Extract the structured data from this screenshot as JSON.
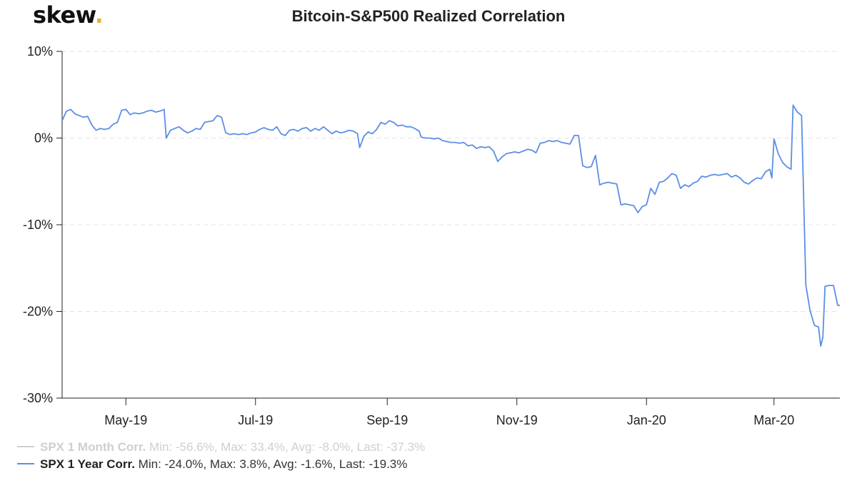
{
  "logo": {
    "text": "skew",
    "dot": "."
  },
  "colors": {
    "series_1y": "#5b8ee6",
    "series_1m_inactive": "#cfcfcf",
    "grid": "#e3e3e3",
    "axis": "#222222",
    "logo_dot": "#e8b33a"
  },
  "legend": [
    {
      "name": "SPX 1 Month Corr.",
      "stats": "Min: -56.6%, Max: 33.4%, Avg: -8.0%, Last: -37.3%",
      "state": "inactive"
    },
    {
      "name": "SPX 1 Year Corr.",
      "stats": "Min: -24.0%, Max: 3.8%, Avg: -1.6%, Last: -19.3%",
      "state": "active"
    }
  ],
  "chart_data": {
    "type": "line",
    "title": "Bitcoin-S&P500 Realized Correlation",
    "xlabel": "",
    "ylabel": "",
    "x_range": [
      "2019-04-01",
      "2020-04-01"
    ],
    "ylim": [
      -30,
      10
    ],
    "y_ticks": [
      10,
      0,
      -10,
      -20,
      -30
    ],
    "y_tick_labels": [
      "10%",
      "0%",
      "-10%",
      "-20%",
      "-30%"
    ],
    "x_ticks": [
      "2019-05-01",
      "2019-07-01",
      "2019-09-01",
      "2019-11-01",
      "2020-01-01",
      "2020-03-01"
    ],
    "x_tick_labels": [
      "May-19",
      "Jul-19",
      "Sep-19",
      "Nov-19",
      "Jan-20",
      "Mar-20"
    ],
    "grid": "horizontal dashed",
    "legend_position": "bottom-left",
    "series": [
      {
        "name": "SPX 1 Year Corr.",
        "points": [
          [
            "2019-04-01",
            2.0
          ],
          [
            "2019-04-03",
            3.1
          ],
          [
            "2019-04-05",
            3.3
          ],
          [
            "2019-04-07",
            2.8
          ],
          [
            "2019-04-09",
            2.6
          ],
          [
            "2019-04-11",
            2.4
          ],
          [
            "2019-04-13",
            2.5
          ],
          [
            "2019-04-15",
            1.5
          ],
          [
            "2019-04-17",
            0.9
          ],
          [
            "2019-04-19",
            1.1
          ],
          [
            "2019-04-21",
            1.0
          ],
          [
            "2019-04-23",
            1.1
          ],
          [
            "2019-04-25",
            1.6
          ],
          [
            "2019-04-27",
            1.8
          ],
          [
            "2019-04-29",
            3.2
          ],
          [
            "2019-05-01",
            3.3
          ],
          [
            "2019-05-03",
            2.7
          ],
          [
            "2019-05-05",
            2.9
          ],
          [
            "2019-05-07",
            2.8
          ],
          [
            "2019-05-09",
            2.9
          ],
          [
            "2019-05-11",
            3.1
          ],
          [
            "2019-05-13",
            3.2
          ],
          [
            "2019-05-15",
            3.0
          ],
          [
            "2019-05-17",
            3.1
          ],
          [
            "2019-05-19",
            3.3
          ],
          [
            "2019-05-20",
            0.0
          ],
          [
            "2019-05-22",
            0.9
          ],
          [
            "2019-05-24",
            1.1
          ],
          [
            "2019-05-26",
            1.3
          ],
          [
            "2019-05-28",
            0.9
          ],
          [
            "2019-05-30",
            0.6
          ],
          [
            "2019-06-01",
            0.8
          ],
          [
            "2019-06-03",
            1.1
          ],
          [
            "2019-06-05",
            1.0
          ],
          [
            "2019-06-07",
            1.8
          ],
          [
            "2019-06-09",
            1.9
          ],
          [
            "2019-06-11",
            2.0
          ],
          [
            "2019-06-13",
            2.6
          ],
          [
            "2019-06-15",
            2.4
          ],
          [
            "2019-06-17",
            0.6
          ],
          [
            "2019-06-19",
            0.4
          ],
          [
            "2019-06-21",
            0.5
          ],
          [
            "2019-06-23",
            0.4
          ],
          [
            "2019-06-25",
            0.5
          ],
          [
            "2019-06-27",
            0.4
          ],
          [
            "2019-06-29",
            0.6
          ],
          [
            "2019-07-01",
            0.7
          ],
          [
            "2019-07-03",
            1.0
          ],
          [
            "2019-07-05",
            1.2
          ],
          [
            "2019-07-07",
            1.0
          ],
          [
            "2019-07-09",
            0.9
          ],
          [
            "2019-07-11",
            1.3
          ],
          [
            "2019-07-13",
            0.5
          ],
          [
            "2019-07-15",
            0.3
          ],
          [
            "2019-07-17",
            0.9
          ],
          [
            "2019-07-19",
            1.0
          ],
          [
            "2019-07-21",
            0.8
          ],
          [
            "2019-07-23",
            1.1
          ],
          [
            "2019-07-25",
            1.2
          ],
          [
            "2019-07-27",
            0.8
          ],
          [
            "2019-07-29",
            1.1
          ],
          [
            "2019-07-31",
            0.9
          ],
          [
            "2019-08-02",
            1.3
          ],
          [
            "2019-08-04",
            0.9
          ],
          [
            "2019-08-06",
            0.5
          ],
          [
            "2019-08-08",
            0.8
          ],
          [
            "2019-08-10",
            0.6
          ],
          [
            "2019-08-12",
            0.7
          ],
          [
            "2019-08-14",
            0.9
          ],
          [
            "2019-08-16",
            0.8
          ],
          [
            "2019-08-18",
            0.5
          ],
          [
            "2019-08-19",
            -1.1
          ],
          [
            "2019-08-21",
            0.2
          ],
          [
            "2019-08-23",
            0.7
          ],
          [
            "2019-08-25",
            0.5
          ],
          [
            "2019-08-27",
            1.0
          ],
          [
            "2019-08-29",
            1.8
          ],
          [
            "2019-08-31",
            1.6
          ],
          [
            "2019-09-02",
            2.0
          ],
          [
            "2019-09-04",
            1.8
          ],
          [
            "2019-09-06",
            1.4
          ],
          [
            "2019-09-08",
            1.5
          ],
          [
            "2019-09-10",
            1.3
          ],
          [
            "2019-09-12",
            1.3
          ],
          [
            "2019-09-14",
            1.1
          ],
          [
            "2019-09-16",
            0.8
          ],
          [
            "2019-09-17",
            0.1
          ],
          [
            "2019-09-19",
            0.0
          ],
          [
            "2019-09-21",
            0.0
          ],
          [
            "2019-09-23",
            -0.1
          ],
          [
            "2019-09-25",
            0.0
          ],
          [
            "2019-09-27",
            -0.3
          ],
          [
            "2019-09-29",
            -0.4
          ],
          [
            "2019-10-01",
            -0.5
          ],
          [
            "2019-10-03",
            -0.5
          ],
          [
            "2019-10-05",
            -0.6
          ],
          [
            "2019-10-07",
            -0.5
          ],
          [
            "2019-10-09",
            -0.9
          ],
          [
            "2019-10-11",
            -0.8
          ],
          [
            "2019-10-13",
            -1.2
          ],
          [
            "2019-10-15",
            -1.0
          ],
          [
            "2019-10-17",
            -1.1
          ],
          [
            "2019-10-19",
            -1.0
          ],
          [
            "2019-10-21",
            -1.5
          ],
          [
            "2019-10-23",
            -2.7
          ],
          [
            "2019-10-25",
            -2.2
          ],
          [
            "2019-10-27",
            -1.8
          ],
          [
            "2019-10-29",
            -1.7
          ],
          [
            "2019-10-31",
            -1.6
          ],
          [
            "2019-11-02",
            -1.7
          ],
          [
            "2019-11-04",
            -1.5
          ],
          [
            "2019-11-06",
            -1.3
          ],
          [
            "2019-11-08",
            -1.4
          ],
          [
            "2019-11-10",
            -1.7
          ],
          [
            "2019-11-12",
            -0.6
          ],
          [
            "2019-11-14",
            -0.5
          ],
          [
            "2019-11-16",
            -0.3
          ],
          [
            "2019-11-18",
            -0.4
          ],
          [
            "2019-11-20",
            -0.3
          ],
          [
            "2019-11-22",
            -0.5
          ],
          [
            "2019-11-24",
            -0.6
          ],
          [
            "2019-11-26",
            -0.7
          ],
          [
            "2019-11-28",
            0.3
          ],
          [
            "2019-11-30",
            0.3
          ],
          [
            "2019-12-02",
            -3.2
          ],
          [
            "2019-12-04",
            -3.4
          ],
          [
            "2019-12-06",
            -3.3
          ],
          [
            "2019-12-08",
            -2.0
          ],
          [
            "2019-12-10",
            -5.4
          ],
          [
            "2019-12-12",
            -5.2
          ],
          [
            "2019-12-14",
            -5.1
          ],
          [
            "2019-12-16",
            -5.2
          ],
          [
            "2019-12-18",
            -5.3
          ],
          [
            "2019-12-20",
            -7.7
          ],
          [
            "2019-12-22",
            -7.6
          ],
          [
            "2019-12-24",
            -7.7
          ],
          [
            "2019-12-26",
            -7.8
          ],
          [
            "2019-12-28",
            -8.6
          ],
          [
            "2019-12-30",
            -7.9
          ],
          [
            "2020-01-01",
            -7.7
          ],
          [
            "2020-01-03",
            -5.8
          ],
          [
            "2020-01-05",
            -6.5
          ],
          [
            "2020-01-07",
            -5.1
          ],
          [
            "2020-01-09",
            -5.0
          ],
          [
            "2020-01-11",
            -4.6
          ],
          [
            "2020-01-13",
            -4.1
          ],
          [
            "2020-01-15",
            -4.3
          ],
          [
            "2020-01-17",
            -5.8
          ],
          [
            "2020-01-19",
            -5.4
          ],
          [
            "2020-01-21",
            -5.6
          ],
          [
            "2020-01-23",
            -5.2
          ],
          [
            "2020-01-25",
            -5.0
          ],
          [
            "2020-01-27",
            -4.4
          ],
          [
            "2020-01-29",
            -4.5
          ],
          [
            "2020-01-31",
            -4.3
          ],
          [
            "2020-02-02",
            -4.2
          ],
          [
            "2020-02-04",
            -4.3
          ],
          [
            "2020-02-06",
            -4.2
          ],
          [
            "2020-02-08",
            -4.1
          ],
          [
            "2020-02-10",
            -4.5
          ],
          [
            "2020-02-12",
            -4.3
          ],
          [
            "2020-02-14",
            -4.6
          ],
          [
            "2020-02-16",
            -5.1
          ],
          [
            "2020-02-18",
            -5.3
          ],
          [
            "2020-02-20",
            -4.9
          ],
          [
            "2020-02-22",
            -4.6
          ],
          [
            "2020-02-24",
            -4.7
          ],
          [
            "2020-02-26",
            -3.9
          ],
          [
            "2020-02-28",
            -3.6
          ],
          [
            "2020-02-29",
            -4.6
          ],
          [
            "2020-03-01",
            -0.1
          ],
          [
            "2020-03-03",
            -1.8
          ],
          [
            "2020-03-05",
            -2.8
          ],
          [
            "2020-03-07",
            -3.3
          ],
          [
            "2020-03-09",
            -3.6
          ],
          [
            "2020-03-10",
            3.8
          ],
          [
            "2020-03-12",
            3.0
          ],
          [
            "2020-03-14",
            2.6
          ],
          [
            "2020-03-16",
            -17.0
          ],
          [
            "2020-03-18",
            -19.9
          ],
          [
            "2020-03-20",
            -21.6
          ],
          [
            "2020-03-22",
            -21.8
          ],
          [
            "2020-03-23",
            -24.0
          ],
          [
            "2020-03-24",
            -23.0
          ],
          [
            "2020-03-25",
            -17.1
          ],
          [
            "2020-03-27",
            -17.0
          ],
          [
            "2020-03-29",
            -17.0
          ],
          [
            "2020-03-31",
            -19.3
          ],
          [
            "2020-04-01",
            -19.3
          ]
        ]
      }
    ]
  }
}
